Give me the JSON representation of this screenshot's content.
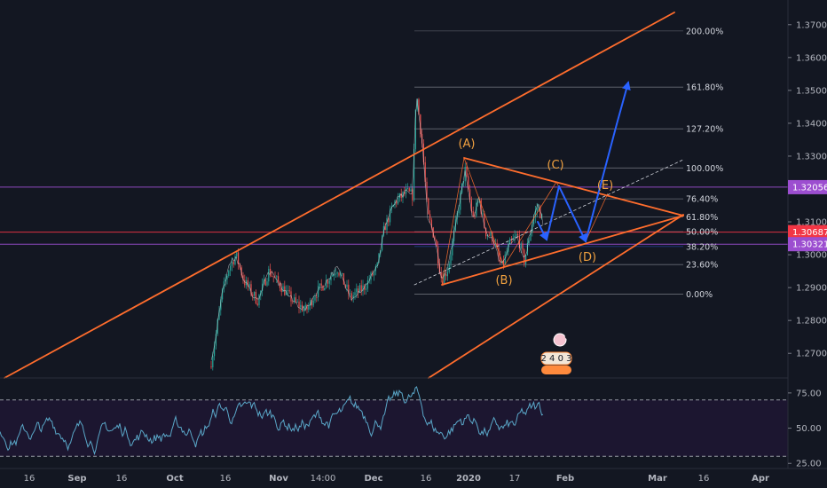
{
  "chart_data": {
    "type": "line",
    "title": "",
    "grid": false,
    "price_axis": {
      "ticks": [
        {
          "label": "1.37000",
          "value": 1.37
        },
        {
          "label": "1.36000",
          "value": 1.36
        },
        {
          "label": "1.35000",
          "value": 1.35
        },
        {
          "label": "1.34000",
          "value": 1.34
        },
        {
          "label": "1.33000",
          "value": 1.33
        },
        {
          "label": "1.31000",
          "value": 1.31
        },
        {
          "label": "1.30000",
          "value": 1.3
        },
        {
          "label": "1.29000",
          "value": 1.29
        },
        {
          "label": "1.28000",
          "value": 1.28
        },
        {
          "label": "1.27000",
          "value": 1.27
        }
      ],
      "range": [
        1.2625,
        1.3775
      ]
    },
    "price_tags": [
      {
        "label": "1.32056",
        "value": 1.32056,
        "color": "#9c4ed0"
      },
      {
        "label": "1.30687",
        "value": 1.30687,
        "color": "#f23645"
      },
      {
        "label": "1.30321",
        "value": 1.30321,
        "color": "#9c4ed0"
      }
    ],
    "rsi_axis": {
      "ticks": [
        {
          "label": "75.00",
          "value": 75
        },
        {
          "label": "50.00",
          "value": 50
        },
        {
          "label": "25.00",
          "value": 25
        }
      ],
      "band": [
        30,
        70
      ],
      "range": [
        22,
        85
      ]
    },
    "time_axis": {
      "labels": [
        "16",
        "Sep",
        "16",
        "Oct",
        "16",
        "Nov",
        "14:00",
        "Dec",
        "16",
        "2020",
        "17",
        "Feb",
        "Mar",
        "16",
        "Apr"
      ]
    },
    "fib_levels": [
      {
        "label": "200.00%",
        "value": 1.3681,
        "color": "#787b86"
      },
      {
        "label": "161.80%",
        "value": 1.351,
        "color": "#d1d4dc"
      },
      {
        "label": "127.20%",
        "value": 1.3383,
        "color": "#d1d4dc"
      },
      {
        "label": "100.00%",
        "value": 1.3264,
        "color": "#d1d4dc"
      },
      {
        "label": "76.40%",
        "value": 1.317,
        "color": "#d1d4dc"
      },
      {
        "label": "61.80%",
        "value": 1.3115,
        "color": "#d1d4dc"
      },
      {
        "label": "50.00%",
        "value": 1.307,
        "color": "#d1d4dc"
      },
      {
        "label": "38.20%",
        "value": 1.3025,
        "color": "#2962ff"
      },
      {
        "label": "23.60%",
        "value": 1.297,
        "color": "#d1d4dc"
      },
      {
        "label": "0.00%",
        "value": 1.288,
        "color": "#d1d4dc"
      }
    ],
    "wave_labels": [
      "(A)",
      "(B)",
      "(C)",
      "(D)",
      "(E)"
    ],
    "event_badges": {
      "top": "6",
      "bottom": "2 4 0 3"
    },
    "colors": {
      "background": "#131722",
      "price_line": "#ffffff",
      "up_candle": "#26a69a",
      "down_candle": "#ef5350",
      "channel": "#ff6d2d",
      "projection": "#2962ff",
      "rsi": "#5aa7c8",
      "wave_label": "#f0a140"
    }
  }
}
